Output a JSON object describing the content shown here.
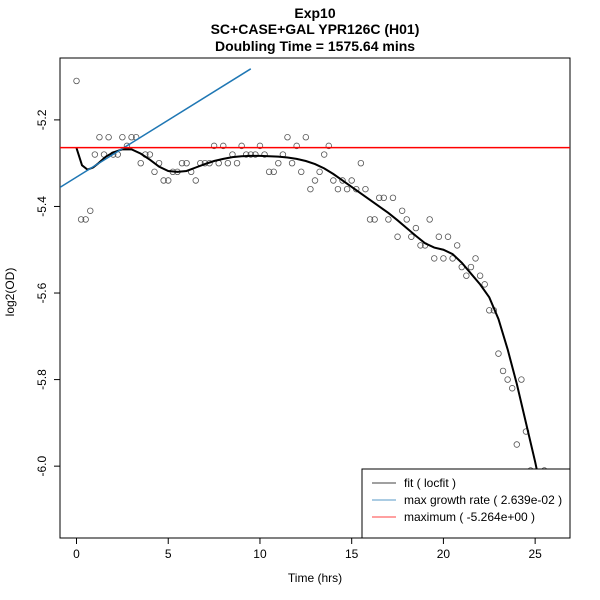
{
  "chart_data": {
    "type": "scatter",
    "title": "Exp10",
    "subtitle": "SC+CASE+GAL YPR126C (H01)",
    "subtitle2": "Doubling Time = 1575.64 mins",
    "xlabel": "Time (hrs)",
    "ylabel": "log2(OD)",
    "xlim": [
      -0.9,
      26.9
    ],
    "ylim": [
      -6.166,
      -5.057
    ],
    "xticks": [
      0,
      5,
      10,
      15,
      20,
      25
    ],
    "yticks": [
      -6.0,
      -5.8,
      -5.6,
      -5.4,
      -5.2
    ],
    "xtick_labels": [
      "0",
      "5",
      "10",
      "15",
      "20",
      "25"
    ],
    "ytick_labels": [
      "-6.0",
      "-5.8",
      "-5.6",
      "-5.4",
      "-5.2"
    ],
    "grid": false,
    "legend_position": "bottom-right",
    "series": [
      {
        "name": "fit ( locfit )",
        "kind": "line",
        "color": "#000000",
        "x": [
          0,
          0.3,
          0.6,
          0.9,
          1.2,
          1.6,
          2.0,
          2.5,
          3.0,
          3.5,
          4.0,
          4.5,
          5.0,
          5.5,
          6.0,
          6.5,
          7.0,
          7.5,
          8.0,
          8.5,
          9.0,
          9.5,
          10.0,
          10.5,
          11.0,
          11.5,
          12.0,
          12.5,
          13.0,
          13.5,
          14.0,
          14.5,
          15.0,
          15.5,
          16.0,
          16.5,
          17.0,
          17.5,
          18.0,
          18.5,
          19.0,
          19.5,
          20.0,
          20.5,
          21.0,
          21.5,
          22.0,
          22.5,
          23.0,
          23.5,
          24.0,
          24.5,
          25.0,
          25.3
        ],
        "y": [
          -5.265,
          -5.305,
          -5.315,
          -5.31,
          -5.3,
          -5.285,
          -5.275,
          -5.268,
          -5.268,
          -5.278,
          -5.292,
          -5.308,
          -5.318,
          -5.32,
          -5.318,
          -5.31,
          -5.302,
          -5.295,
          -5.29,
          -5.286,
          -5.284,
          -5.283,
          -5.283,
          -5.284,
          -5.285,
          -5.287,
          -5.29,
          -5.295,
          -5.302,
          -5.312,
          -5.325,
          -5.34,
          -5.355,
          -5.37,
          -5.385,
          -5.4,
          -5.415,
          -5.432,
          -5.45,
          -5.468,
          -5.485,
          -5.495,
          -5.5,
          -5.51,
          -5.53,
          -5.555,
          -5.58,
          -5.61,
          -5.66,
          -5.73,
          -5.81,
          -5.9,
          -5.99,
          -6.05
        ]
      },
      {
        "name": "max growth rate ( 2.639e-02 )",
        "kind": "line",
        "color": "#1f77b4",
        "x": [
          -0.9,
          9.5
        ],
        "y": [
          -5.356,
          -5.082
        ]
      },
      {
        "name": "maximum ( -5.264e+00 )",
        "kind": "hline",
        "color": "#ff0000",
        "y": -5.264
      },
      {
        "name": "observations",
        "kind": "points",
        "color": "#000000",
        "x": [
          0,
          0.25,
          0.5,
          0.75,
          1.0,
          1.25,
          1.5,
          1.75,
          2.0,
          2.25,
          2.5,
          2.75,
          3.0,
          3.25,
          3.5,
          3.75,
          4.0,
          4.25,
          4.5,
          4.75,
          5.0,
          5.25,
          5.5,
          5.75,
          6.0,
          6.25,
          6.5,
          6.75,
          7.0,
          7.25,
          7.5,
          7.75,
          8.0,
          8.25,
          8.5,
          8.75,
          9.0,
          9.25,
          9.5,
          9.75,
          10.0,
          10.25,
          10.5,
          10.75,
          11.0,
          11.25,
          11.5,
          11.75,
          12.0,
          12.25,
          12.5,
          12.75,
          13.0,
          13.25,
          13.5,
          13.75,
          14.0,
          14.25,
          14.5,
          14.75,
          15.0,
          15.25,
          15.5,
          15.75,
          16.0,
          16.25,
          16.5,
          16.75,
          17.0,
          17.25,
          17.5,
          17.75,
          18.0,
          18.25,
          18.5,
          18.75,
          19.0,
          19.25,
          19.5,
          19.75,
          20.0,
          20.25,
          20.5,
          20.75,
          21.0,
          21.25,
          21.5,
          21.75,
          22.0,
          22.25,
          22.5,
          22.75,
          23.0,
          23.25,
          23.5,
          23.75,
          24.0,
          24.25,
          24.5,
          24.75,
          25.0,
          25.25,
          25.5
        ],
        "y": [
          -5.11,
          -5.43,
          -5.43,
          -5.41,
          -5.28,
          -5.24,
          -5.28,
          -5.24,
          -5.28,
          -5.28,
          -5.24,
          -5.26,
          -5.24,
          -5.24,
          -5.3,
          -5.28,
          -5.28,
          -5.32,
          -5.3,
          -5.34,
          -5.34,
          -5.32,
          -5.32,
          -5.3,
          -5.3,
          -5.32,
          -5.34,
          -5.3,
          -5.3,
          -5.3,
          -5.26,
          -5.3,
          -5.26,
          -5.3,
          -5.28,
          -5.3,
          -5.26,
          -5.28,
          -5.28,
          -5.28,
          -5.26,
          -5.28,
          -5.32,
          -5.32,
          -5.3,
          -5.28,
          -5.24,
          -5.3,
          -5.26,
          -5.32,
          -5.24,
          -5.36,
          -5.34,
          -5.32,
          -5.28,
          -5.26,
          -5.34,
          -5.36,
          -5.34,
          -5.36,
          -5.34,
          -5.36,
          -5.3,
          -5.36,
          -5.43,
          -5.43,
          -5.38,
          -5.38,
          -5.43,
          -5.38,
          -5.47,
          -5.41,
          -5.43,
          -5.47,
          -5.45,
          -5.49,
          -5.49,
          -5.43,
          -5.52,
          -5.47,
          -5.52,
          -5.47,
          -5.52,
          -5.49,
          -5.54,
          -5.56,
          -5.54,
          -5.52,
          -5.56,
          -5.58,
          -5.64,
          -5.64,
          -5.74,
          -5.78,
          -5.8,
          -5.82,
          -5.95,
          -5.8,
          -5.92,
          -6.01,
          -6.03,
          -6.05,
          -6.01
        ]
      }
    ]
  }
}
